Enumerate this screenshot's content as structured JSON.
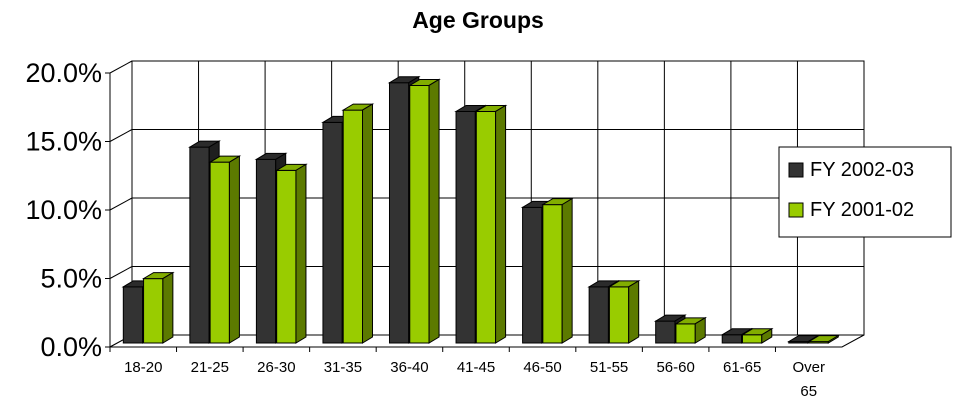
{
  "chart_data": {
    "type": "bar",
    "title": "Age Groups",
    "xlabel": "",
    "ylabel": "",
    "categories": [
      "18-20",
      "21-25",
      "26-30",
      "31-35",
      "36-40",
      "41-45",
      "46-50",
      "51-55",
      "56-60",
      "61-65",
      "Over 65"
    ],
    "series": [
      {
        "name": "FY 2002-03",
        "color": "#333333",
        "values": [
          4.1,
          14.3,
          13.4,
          16.1,
          19.0,
          16.9,
          9.9,
          4.1,
          1.6,
          0.6,
          0.1
        ]
      },
      {
        "name": "FY 2001-02",
        "color": "#99cc00",
        "values": [
          4.7,
          13.2,
          12.6,
          17.0,
          18.8,
          16.9,
          10.1,
          4.1,
          1.4,
          0.6,
          0.1
        ]
      }
    ],
    "ylim": [
      0,
      20
    ],
    "yticks": [
      "0.0%",
      "5.0%",
      "10.0%",
      "15.0%",
      "20.0%"
    ],
    "grid": true,
    "legend": "right",
    "style": "3d-bar"
  }
}
